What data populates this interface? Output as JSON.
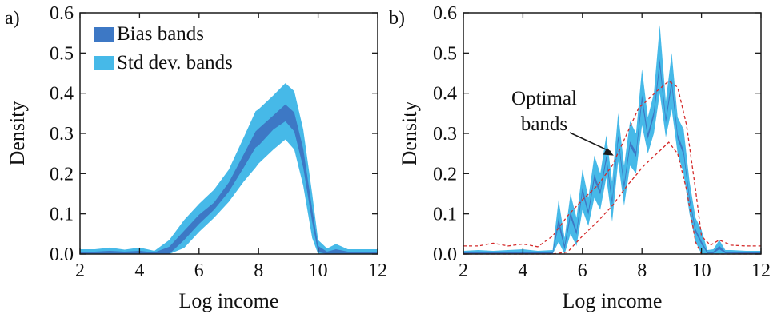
{
  "colors": {
    "bias_band": "#3d78c5",
    "std_band": "#46b9e8",
    "optimal_line": "#d42b2b",
    "axis": "#1a1a1a"
  },
  "chart_data": [
    {
      "panel_label": "a)",
      "type": "area",
      "xlabel": "Log income",
      "ylabel": "Density",
      "xlim": [
        2,
        12
      ],
      "ylim": [
        0,
        0.6
      ],
      "x_ticks": [
        "2",
        "4",
        "6",
        "8",
        "10",
        "12"
      ],
      "y_ticks": [
        "0.0",
        "0.1",
        "0.2",
        "0.3",
        "0.4",
        "0.5",
        "0.6"
      ],
      "legend": {
        "position": "top-left",
        "entries": [
          {
            "label": "Bias bands",
            "color": "#3d78c5"
          },
          {
            "label": "Std dev. bands",
            "color": "#46b9e8"
          }
        ]
      },
      "series": [
        {
          "name": "Std dev. bands",
          "x": [
            2.0,
            2.5,
            3.0,
            3.5,
            4.0,
            4.5,
            5.0,
            5.5,
            6.0,
            6.5,
            7.0,
            7.5,
            7.9,
            8.0,
            8.5,
            8.9,
            9.2,
            9.5,
            9.8,
            10.0,
            10.3,
            10.6,
            11.0,
            11.5,
            12.0
          ],
          "upper": [
            0.012,
            0.012,
            0.016,
            0.011,
            0.016,
            0.008,
            0.035,
            0.085,
            0.125,
            0.16,
            0.21,
            0.29,
            0.355,
            0.36,
            0.395,
            0.425,
            0.405,
            0.31,
            0.15,
            0.035,
            0.014,
            0.025,
            0.012,
            0.012,
            0.012
          ],
          "lower": [
            0.0,
            0.0,
            0.0,
            0.0,
            0.0,
            0.0,
            0.0,
            0.015,
            0.055,
            0.09,
            0.13,
            0.18,
            0.215,
            0.225,
            0.26,
            0.285,
            0.26,
            0.17,
            0.04,
            0.0,
            0.0,
            0.0,
            0.0,
            0.0,
            0.0
          ]
        },
        {
          "name": "Bias bands",
          "x": [
            2.0,
            2.5,
            3.0,
            3.5,
            4.0,
            4.5,
            5.0,
            5.5,
            6.0,
            6.5,
            7.0,
            7.5,
            7.9,
            8.0,
            8.5,
            8.9,
            9.2,
            9.5,
            9.8,
            10.0,
            10.3,
            10.6,
            11.0,
            11.5,
            12.0
          ],
          "upper": [
            0.006,
            0.006,
            0.008,
            0.006,
            0.008,
            0.004,
            0.018,
            0.058,
            0.098,
            0.128,
            0.178,
            0.248,
            0.305,
            0.312,
            0.345,
            0.372,
            0.352,
            0.262,
            0.112,
            0.02,
            0.006,
            0.012,
            0.006,
            0.006,
            0.006
          ],
          "lower": [
            0.0,
            0.0,
            0.0,
            0.0,
            0.0,
            0.0,
            0.0,
            0.035,
            0.075,
            0.11,
            0.155,
            0.215,
            0.265,
            0.27,
            0.31,
            0.33,
            0.305,
            0.215,
            0.08,
            0.005,
            0.0,
            0.0,
            0.0,
            0.0,
            0.0
          ]
        }
      ]
    },
    {
      "panel_label": "b)",
      "type": "area",
      "xlabel": "Log income",
      "ylabel": "Density",
      "xlim": [
        2,
        12
      ],
      "ylim": [
        0,
        0.6
      ],
      "x_ticks": [
        "2",
        "4",
        "6",
        "8",
        "10",
        "12"
      ],
      "y_ticks": [
        "0.0",
        "0.1",
        "0.2",
        "0.3",
        "0.4",
        "0.5",
        "0.6"
      ],
      "annotation": {
        "text_lines": [
          "Optimal",
          "bands"
        ],
        "points_to": [
          7.05,
          0.245
        ]
      },
      "series": [
        {
          "name": "Std dev. bands",
          "x": [
            2.0,
            2.5,
            3.0,
            3.5,
            4.0,
            4.5,
            5.0,
            5.2,
            5.4,
            5.6,
            5.8,
            6.0,
            6.2,
            6.4,
            6.6,
            6.8,
            7.0,
            7.2,
            7.4,
            7.6,
            7.8,
            8.0,
            8.2,
            8.4,
            8.6,
            8.8,
            9.0,
            9.2,
            9.4,
            9.6,
            9.8,
            10.0,
            10.2,
            10.4,
            10.6,
            10.8,
            11.0,
            11.5,
            12.0
          ],
          "upper": [
            0.008,
            0.01,
            0.008,
            0.01,
            0.012,
            0.008,
            0.01,
            0.135,
            0.04,
            0.15,
            0.09,
            0.21,
            0.14,
            0.245,
            0.2,
            0.295,
            0.18,
            0.35,
            0.22,
            0.33,
            0.3,
            0.46,
            0.34,
            0.4,
            0.57,
            0.38,
            0.5,
            0.34,
            0.31,
            0.18,
            0.09,
            0.06,
            0.01,
            0.012,
            0.035,
            0.01,
            0.01,
            0.008,
            0.008
          ],
          "lower": [
            0.0,
            0.0,
            0.0,
            0.0,
            0.0,
            0.0,
            0.0,
            0.03,
            0.0,
            0.05,
            0.02,
            0.11,
            0.07,
            0.14,
            0.11,
            0.19,
            0.08,
            0.23,
            0.12,
            0.22,
            0.2,
            0.32,
            0.25,
            0.3,
            0.4,
            0.29,
            0.36,
            0.25,
            0.2,
            0.1,
            0.03,
            0.0,
            0.0,
            0.0,
            0.0,
            0.0,
            0.0,
            0.0,
            0.0
          ]
        },
        {
          "name": "Bias bands",
          "x": [
            2.0,
            2.5,
            3.0,
            3.5,
            4.0,
            4.5,
            5.0,
            5.2,
            5.4,
            5.6,
            5.8,
            6.0,
            6.2,
            6.4,
            6.6,
            6.8,
            7.0,
            7.2,
            7.4,
            7.6,
            7.8,
            8.0,
            8.2,
            8.4,
            8.6,
            8.8,
            9.0,
            9.2,
            9.4,
            9.6,
            9.8,
            10.0,
            10.2,
            10.4,
            10.6,
            10.8,
            11.0,
            11.5,
            12.0
          ],
          "upper": [
            0.004,
            0.006,
            0.004,
            0.006,
            0.006,
            0.004,
            0.005,
            0.09,
            0.022,
            0.105,
            0.058,
            0.165,
            0.108,
            0.198,
            0.158,
            0.245,
            0.135,
            0.295,
            0.175,
            0.28,
            0.255,
            0.395,
            0.3,
            0.355,
            0.485,
            0.338,
            0.435,
            0.298,
            0.258,
            0.142,
            0.062,
            0.032,
            0.006,
            0.006,
            0.02,
            0.006,
            0.006,
            0.004,
            0.004
          ],
          "lower": [
            0.0,
            0.0,
            0.0,
            0.0,
            0.0,
            0.0,
            0.0,
            0.072,
            0.012,
            0.092,
            0.048,
            0.152,
            0.098,
            0.184,
            0.148,
            0.232,
            0.122,
            0.282,
            0.162,
            0.268,
            0.242,
            0.378,
            0.286,
            0.342,
            0.465,
            0.326,
            0.418,
            0.286,
            0.246,
            0.132,
            0.054,
            0.024,
            0.002,
            0.002,
            0.012,
            0.002,
            0.002,
            0.0,
            0.0
          ]
        },
        {
          "name": "Optimal bands upper",
          "x": [
            2.0,
            2.5,
            3.0,
            3.5,
            4.0,
            4.5,
            5.0,
            5.5,
            6.0,
            6.5,
            7.0,
            7.5,
            7.9,
            8.0,
            8.5,
            8.9,
            9.2,
            9.5,
            9.8,
            10.0,
            10.3,
            10.6,
            11.0,
            11.5,
            12.0
          ],
          "values": [
            0.02,
            0.02,
            0.027,
            0.02,
            0.025,
            0.018,
            0.045,
            0.095,
            0.135,
            0.17,
            0.22,
            0.3,
            0.365,
            0.37,
            0.405,
            0.43,
            0.415,
            0.32,
            0.16,
            0.045,
            0.022,
            0.035,
            0.022,
            0.02,
            0.02
          ]
        },
        {
          "name": "Optimal bands lower",
          "x": [
            2.0,
            2.5,
            3.0,
            3.5,
            4.0,
            4.5,
            5.0,
            5.5,
            6.0,
            6.5,
            7.0,
            7.5,
            7.9,
            8.0,
            8.5,
            8.9,
            9.2,
            9.5,
            9.8,
            10.0,
            10.3,
            10.6,
            11.0,
            11.5,
            12.0
          ],
          "values": [
            0.0,
            0.0,
            0.0,
            0.0,
            0.0,
            0.0,
            0.0,
            0.005,
            0.045,
            0.08,
            0.12,
            0.17,
            0.205,
            0.215,
            0.25,
            0.278,
            0.25,
            0.16,
            0.03,
            0.0,
            0.0,
            0.0,
            0.0,
            0.0,
            0.0
          ]
        }
      ]
    }
  ]
}
